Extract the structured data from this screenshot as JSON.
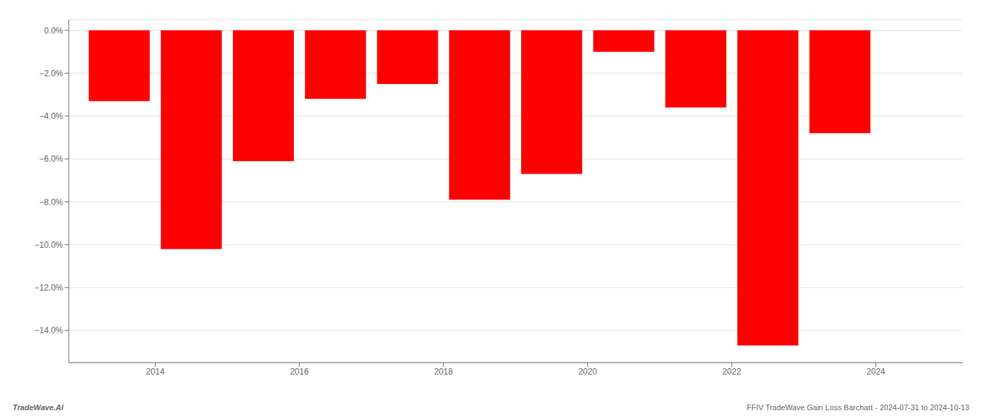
{
  "chart_data": {
    "type": "bar",
    "x": [
      2013.5,
      2014.5,
      2015.5,
      2016.5,
      2017.5,
      2018.5,
      2019.5,
      2020.5,
      2021.5,
      2022.5,
      2023.5
    ],
    "values": [
      -3.3,
      -10.2,
      -6.1,
      -3.2,
      -2.5,
      -7.9,
      -6.7,
      -1.0,
      -3.6,
      -14.7,
      -4.8
    ],
    "color": "#FF0000",
    "xlim": [
      2012.8,
      2025.2
    ],
    "xticks": [
      2014,
      2016,
      2018,
      2020,
      2022,
      2024
    ],
    "ylim": [
      -15.5,
      0.5
    ],
    "yticks": [
      {
        "value": 0.0,
        "label": "0.0%"
      },
      {
        "value": -2.0,
        "label": "−2.0%"
      },
      {
        "value": -4.0,
        "label": "−4.0%"
      },
      {
        "value": -6.0,
        "label": "−6.0%"
      },
      {
        "value": -8.0,
        "label": "−8.0%"
      },
      {
        "value": -10.0,
        "label": "−10.0%"
      },
      {
        "value": -12.0,
        "label": "−12.0%"
      },
      {
        "value": -14.0,
        "label": "−14.0%"
      }
    ],
    "grid": true,
    "annotations": [
      "TradeWave.AI",
      "FFIV TradeWave Gain Loss Barchart - 2024-07-31 to 2024-10-13"
    ]
  }
}
